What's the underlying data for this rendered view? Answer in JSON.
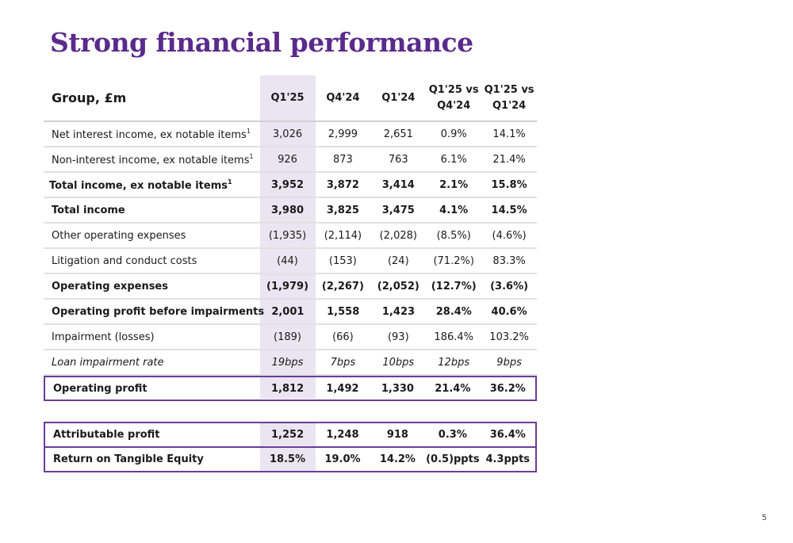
{
  "title": "Strong financial performance",
  "page_number": "5",
  "table": {
    "header": {
      "label": "Group, £m",
      "columns": [
        "Q1'25",
        "Q4'24",
        "Q1'24",
        "Q1'25 vs\nQ4'24",
        "Q1'25 vs\nQ1'24"
      ]
    },
    "rows": [
      {
        "label": "Net interest income, ex notable items",
        "sup": "1",
        "values": [
          "3,026",
          "2,999",
          "2,651",
          "0.9%",
          "14.1%"
        ]
      },
      {
        "label": "Non-interest income, ex notable items",
        "sup": "1",
        "values": [
          "926",
          "873",
          "763",
          "6.1%",
          "21.4%"
        ]
      },
      {
        "label": "Total income, ex notable items",
        "sup": "1",
        "values": [
          "3,952",
          "3,872",
          "3,414",
          "2.1%",
          "15.8%"
        ]
      },
      {
        "label": "Total income",
        "values": [
          "3,980",
          "3,825",
          "3,475",
          "4.1%",
          "14.5%"
        ]
      },
      {
        "label": "Other operating expenses",
        "values": [
          "(1,935)",
          "(2,114)",
          "(2,028)",
          "(8.5%)",
          "(4.6%)"
        ]
      },
      {
        "label": "Litigation and conduct costs",
        "values": [
          "(44)",
          "(153)",
          "(24)",
          "(71.2%)",
          "83.3%"
        ]
      },
      {
        "label": "Operating expenses",
        "values": [
          "(1,979)",
          "(2,267)",
          "(2,052)",
          "(12.7%)",
          "(3.6%)"
        ]
      },
      {
        "label": "Operating profit before impairments",
        "values": [
          "2,001",
          "1,558",
          "1,423",
          "28.4%",
          "40.6%"
        ]
      },
      {
        "label": "Impairment (losses)",
        "values": [
          "(189)",
          "(66)",
          "(93)",
          "186.4%",
          "103.2%"
        ]
      },
      {
        "label": "Loan impairment rate",
        "values": [
          "19bps",
          "7bps",
          "10bps",
          "12bps",
          "9bps"
        ]
      },
      {
        "label": "Operating profit",
        "values": [
          "1,812",
          "1,492",
          "1,330",
          "21.4%",
          "36.2%"
        ]
      }
    ]
  },
  "table2": {
    "rows": [
      {
        "label": "Attributable profit",
        "values": [
          "1,252",
          "1,248",
          "918",
          "0.3%",
          "36.4%"
        ]
      },
      {
        "label": "Return on Tangible Equity",
        "values": [
          "18.5%",
          "19.0%",
          "14.2%",
          "(0.5)ppts",
          "4.3ppts"
        ]
      }
    ]
  }
}
